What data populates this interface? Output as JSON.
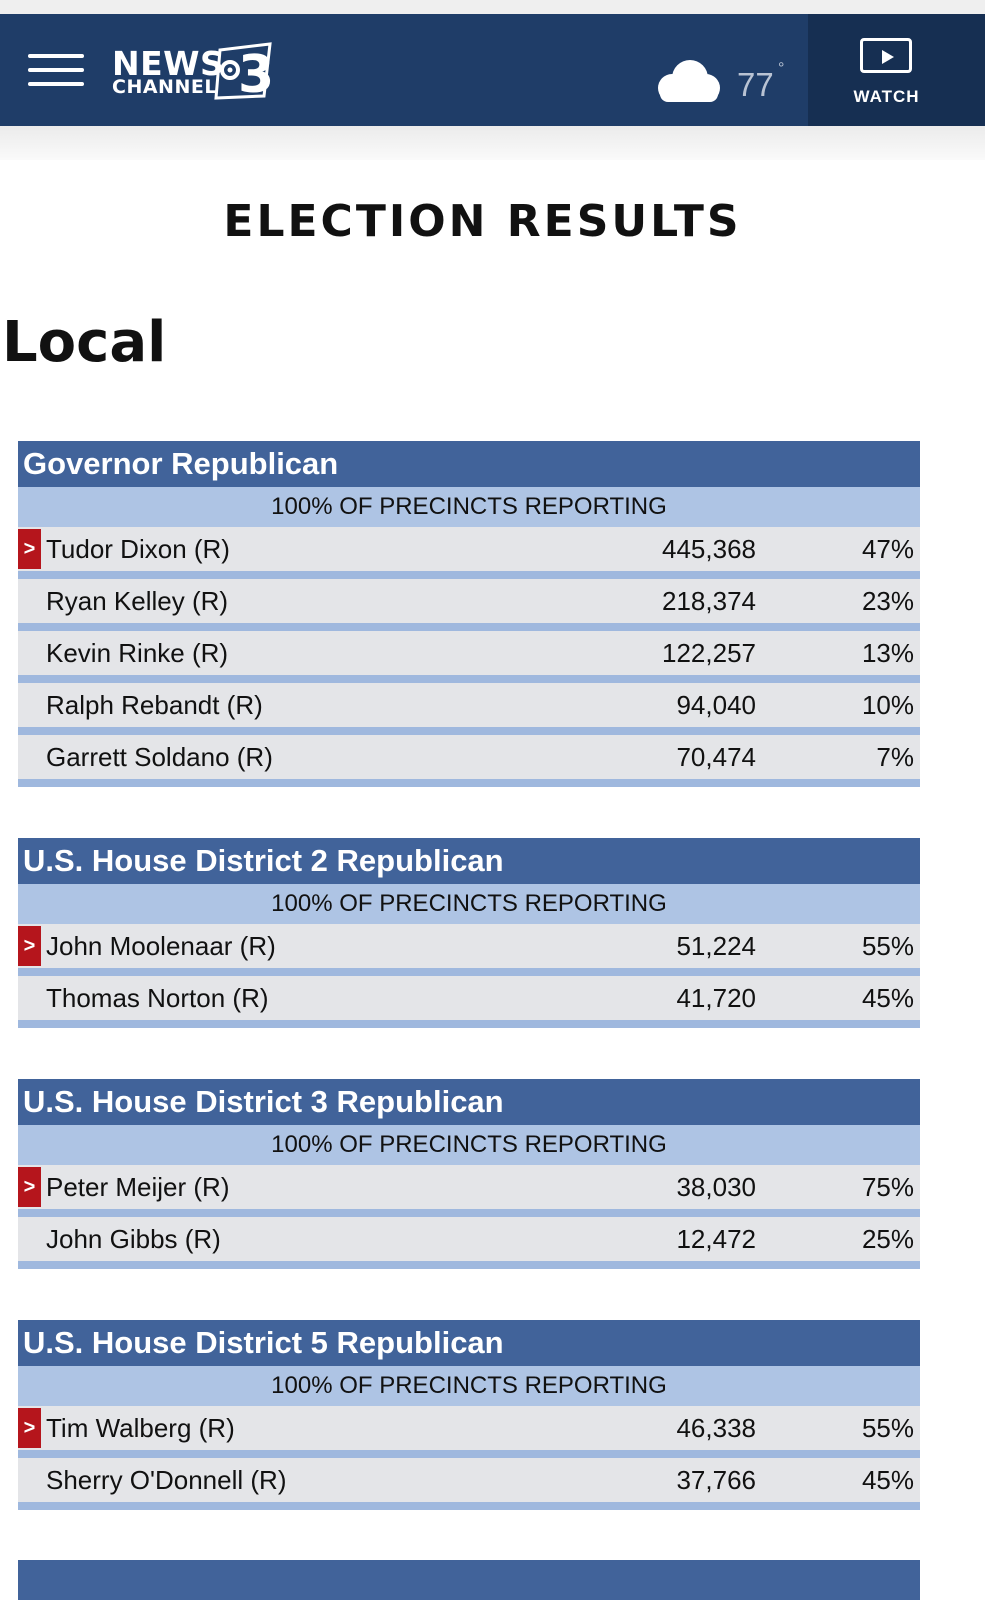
{
  "header": {
    "menu_icon": "hamburger-menu-icon",
    "logo_news": "NEWS",
    "logo_channel": "CHANNEL",
    "logo_number": "3",
    "weather_icon": "cloud-icon",
    "temperature": "77",
    "degree_symbol": "°",
    "watch_label": "WATCH",
    "watch_icon": "play-icon",
    "bg_color": "#1f3d68"
  },
  "page_title": "ELECTION RESULTS",
  "section_title": "Local",
  "races": [
    {
      "title": "Governor Republican",
      "precincts": "100% OF PRECINCTS REPORTING",
      "candidates": [
        {
          "name": "Tudor Dixon (R)",
          "votes": "445,368",
          "pct": "47%",
          "winner": true
        },
        {
          "name": "Ryan Kelley (R)",
          "votes": "218,374",
          "pct": "23%",
          "winner": false
        },
        {
          "name": "Kevin Rinke (R)",
          "votes": "122,257",
          "pct": "13%",
          "winner": false
        },
        {
          "name": "Ralph Rebandt (R)",
          "votes": "94,040",
          "pct": "10%",
          "winner": false
        },
        {
          "name": "Garrett Soldano (R)",
          "votes": "70,474",
          "pct": "7%",
          "winner": false
        }
      ]
    },
    {
      "title": "U.S. House District 2 Republican",
      "precincts": "100% OF PRECINCTS REPORTING",
      "candidates": [
        {
          "name": "John Moolenaar (R)",
          "votes": "51,224",
          "pct": "55%",
          "winner": true
        },
        {
          "name": "Thomas Norton (R)",
          "votes": "41,720",
          "pct": "45%",
          "winner": false
        }
      ]
    },
    {
      "title": "U.S. House District 3 Republican",
      "precincts": "100% OF PRECINCTS REPORTING",
      "candidates": [
        {
          "name": "Peter Meijer (R)",
          "votes": "38,030",
          "pct": "75%",
          "winner": true
        },
        {
          "name": "John Gibbs (R)",
          "votes": "12,472",
          "pct": "25%",
          "winner": false
        }
      ]
    },
    {
      "title": "U.S. House District 5 Republican",
      "precincts": "100% OF PRECINCTS REPORTING",
      "candidates": [
        {
          "name": "Tim Walberg (R)",
          "votes": "46,338",
          "pct": "55%",
          "winner": true
        },
        {
          "name": "Sherry O'Donnell (R)",
          "votes": "37,766",
          "pct": "45%",
          "winner": false
        }
      ]
    }
  ],
  "winner_marker": ">",
  "colors": {
    "race_header": "#41639a",
    "precinct_band": "#aec4e4",
    "row_bg": "#e4e5e8",
    "winner_marker": "#b5151c"
  }
}
